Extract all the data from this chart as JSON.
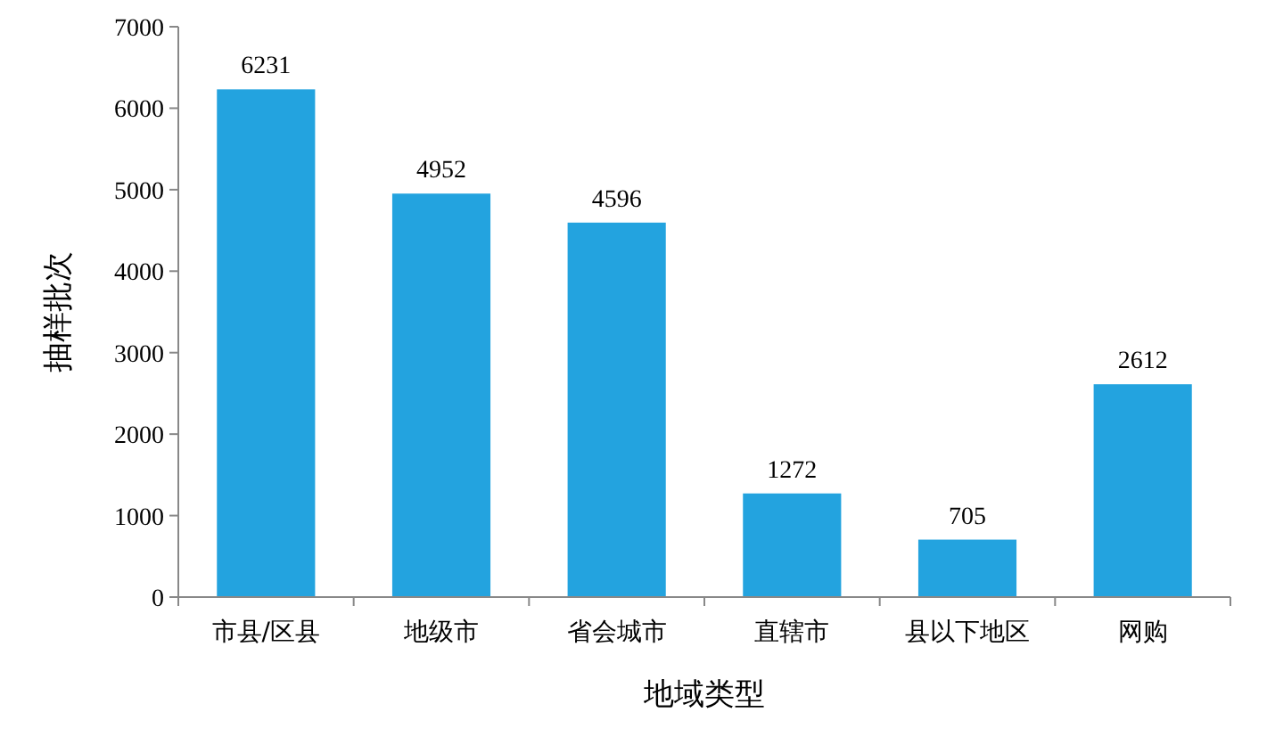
{
  "chart_data": {
    "type": "bar",
    "xlabel": "地域类型",
    "ylabel": "抽样批次",
    "categories": [
      "市县/区县",
      "地级市",
      "省会城市",
      "直辖市",
      "县以下地区",
      "网购"
    ],
    "values": [
      6231,
      4952,
      4596,
      1272,
      705,
      2612
    ],
    "color": "#23a3df",
    "ylim": [
      0,
      7000
    ],
    "yticks": [
      0,
      1000,
      2000,
      3000,
      4000,
      5000,
      6000,
      7000
    ],
    "data_labels": true,
    "grid": false
  }
}
